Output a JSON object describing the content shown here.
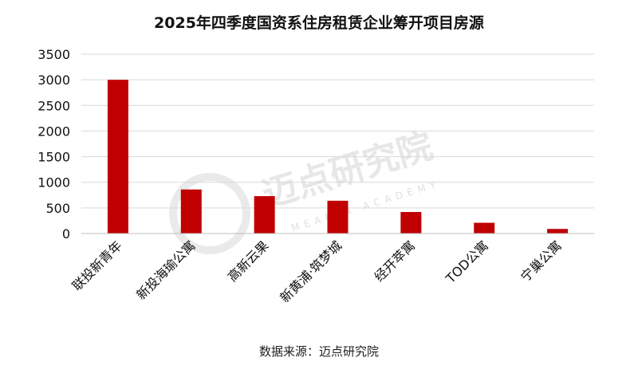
{
  "chart_data": {
    "type": "bar",
    "title": "2025年四季度国资系住房租赁企业筹开项目房源",
    "categories": [
      "联投新青年",
      "新投海瑜公寓",
      "高新云果",
      "新黄浦·筑梦城",
      "经开萃寓",
      "TOD公寓",
      "宁巢公寓"
    ],
    "values": [
      3000,
      860,
      730,
      640,
      420,
      210,
      90
    ],
    "xlabel": "",
    "ylabel": "",
    "ylim": [
      0,
      3500
    ],
    "yticks": [
      0,
      500,
      1000,
      1500,
      2000,
      2500,
      3000,
      3500
    ],
    "grid": true,
    "legend": "none"
  },
  "source": "数据来源：迈点研究院",
  "watermark": {
    "text": "迈点研究院",
    "subtext": "MEADIN ACADEMY"
  },
  "colors": {
    "bar": "#C00000",
    "grid": "#D9D9D9",
    "axis": "#BFBFBF",
    "watermark": "#D8D8D8"
  }
}
